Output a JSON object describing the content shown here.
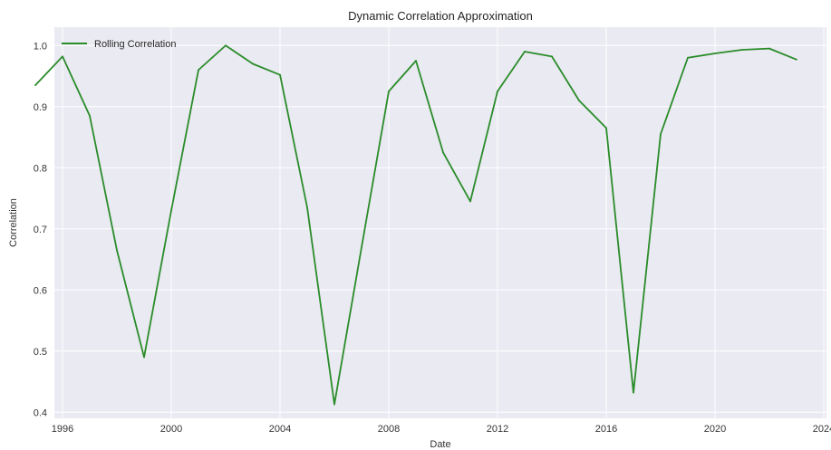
{
  "chart_data": {
    "type": "line",
    "title": "Dynamic Correlation Approximation",
    "xlabel": "Date",
    "ylabel": "Correlation",
    "xlim": [
      1995.7,
      2024.1
    ],
    "ylim": [
      0.39,
      1.03
    ],
    "x_ticks": [
      1996,
      2000,
      2004,
      2008,
      2012,
      2016,
      2020,
      2024
    ],
    "x_tick_labels": [
      "1996",
      "2000",
      "2004",
      "2008",
      "2012",
      "2016",
      "2020",
      "2024"
    ],
    "y_ticks": [
      0.4,
      0.5,
      0.6,
      0.7,
      0.8,
      0.9,
      1.0
    ],
    "y_tick_labels": [
      "0.4",
      "0.5",
      "0.6",
      "0.7",
      "0.8",
      "0.9",
      "1.0"
    ],
    "grid": true,
    "legend_position": "top-left",
    "series": [
      {
        "name": "Rolling Correlation",
        "color": "#2a8c2a",
        "x": [
          1995,
          1996,
          1997,
          1998,
          1999,
          2000,
          2001,
          2002,
          2003,
          2004,
          2005,
          2006,
          2007,
          2008,
          2009,
          2010,
          2011,
          2012,
          2013,
          2014,
          2015,
          2016,
          2017,
          2018,
          2019,
          2020,
          2021,
          2022,
          2023
        ],
        "values": [
          0.935,
          0.982,
          0.885,
          0.665,
          0.49,
          0.73,
          0.96,
          1.0,
          0.97,
          0.952,
          0.735,
          0.413,
          0.67,
          0.925,
          0.975,
          0.825,
          0.745,
          0.925,
          0.99,
          0.982,
          0.91,
          0.865,
          0.432,
          0.855,
          0.98,
          0.987,
          0.993,
          0.995,
          0.977
        ]
      }
    ]
  }
}
